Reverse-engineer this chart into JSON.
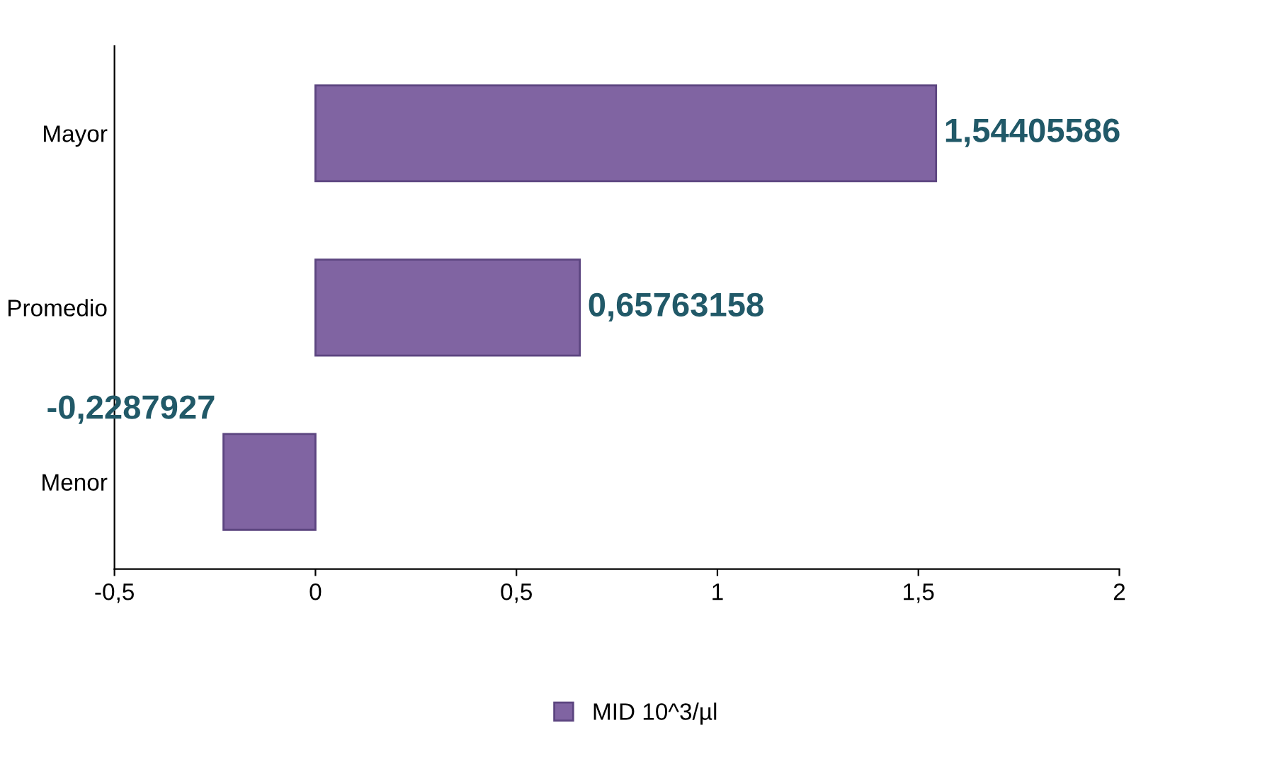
{
  "chart_data": {
    "type": "bar",
    "orientation": "horizontal",
    "categories": [
      "Mayor",
      "Promedio",
      "Menor"
    ],
    "series": [
      {
        "name": "MID 10^3/µl",
        "color": "#8064a2",
        "values": [
          1.54405586,
          0.65763158,
          -0.2287927
        ]
      }
    ],
    "value_labels": [
      "1,54405586",
      "0,65763158",
      "-0,2287927"
    ],
    "xlim": [
      -0.5,
      2
    ],
    "xticks": [
      {
        "value": -0.5,
        "label": "-0,5"
      },
      0,
      {
        "value": 0.5,
        "label": "0,5"
      },
      1,
      {
        "value": 1.5,
        "label": "1,5"
      },
      2
    ],
    "grid": false,
    "legend": "bottom"
  }
}
